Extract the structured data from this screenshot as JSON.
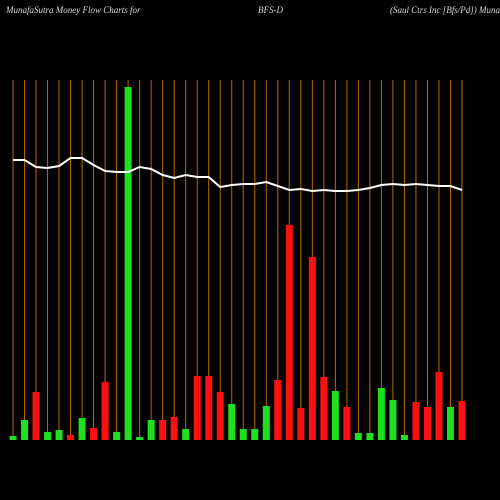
{
  "chart_data": {
    "type": "bar",
    "title": "MunafaSutra  Money Flow  Charts for",
    "subtitle": "BFS-D",
    "annotation": "(Saul Ctrs Inc [Bfs/Pd]) MunafaSutra.com",
    "categories": [
      null,
      null,
      null,
      null,
      null,
      null,
      null,
      null,
      null,
      null,
      null,
      null,
      null,
      null,
      null,
      null,
      null,
      null,
      null,
      null,
      null,
      null,
      null,
      null,
      null,
      null,
      null,
      null,
      null,
      null,
      null,
      null,
      null,
      null,
      null,
      null,
      null,
      null,
      null,
      null
    ],
    "series": [
      {
        "type": "bar",
        "values": [
          4,
          20,
          48,
          8,
          10,
          5,
          22,
          12,
          58,
          8,
          353,
          3,
          20,
          20,
          23,
          11,
          64,
          64,
          48,
          36,
          11,
          11,
          34,
          60,
          215,
          32,
          183,
          63,
          49,
          33,
          7,
          7,
          52,
          40,
          5,
          38,
          33,
          68,
          33,
          39
        ],
        "colors": [
          "#1fe01f",
          "#1fe01f",
          "#ff1010",
          "#1fe01f",
          "#1fe01f",
          "#ff1010",
          "#1fe01f",
          "#ff1010",
          "#ff1010",
          "#1fe01f",
          "#1fe01f",
          "#1fe01f",
          "#1fe01f",
          "#ff1010",
          "#ff1010",
          "#1fe01f",
          "#ff1010",
          "#ff1010",
          "#ff1010",
          "#1fe01f",
          "#1fe01f",
          "#1fe01f",
          "#1fe01f",
          "#ff1010",
          "#ff1010",
          "#ff1010",
          "#ff1010",
          "#ff1010",
          "#1fe01f",
          "#ff1010",
          "#1fe01f",
          "#1fe01f",
          "#1fe01f",
          "#1fe01f",
          "#1fe01f",
          "#ff1010",
          "#ff1010",
          "#ff1010",
          "#1fe01f",
          "#ff1010"
        ]
      },
      {
        "type": "line",
        "color": "#ffffff",
        "values": [
          280,
          280,
          273,
          272,
          274,
          282,
          282,
          275,
          269,
          268,
          268,
          273,
          271,
          265,
          262,
          265,
          263,
          263,
          253,
          255,
          256,
          256,
          258,
          254,
          250,
          251,
          249,
          250,
          249,
          249,
          250,
          252,
          255,
          256,
          255,
          256,
          255,
          254,
          254,
          250
        ]
      }
    ],
    "ylim": [
      0,
      360
    ],
    "gridline_color": "#b86a00"
  }
}
